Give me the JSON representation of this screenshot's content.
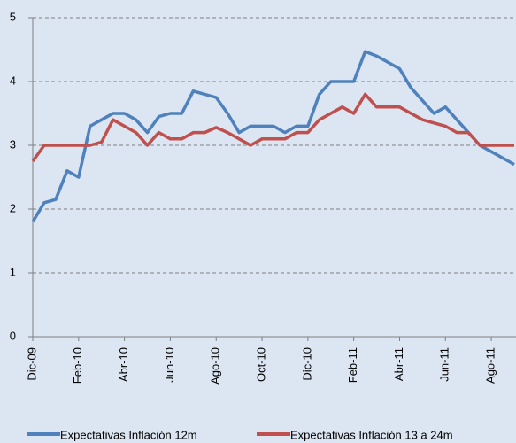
{
  "chart_data": {
    "type": "line",
    "categories": [
      "Dic-09",
      null,
      null,
      null,
      "Feb-10",
      null,
      null,
      null,
      "Abr-10",
      null,
      null,
      null,
      "Jun-10",
      null,
      null,
      null,
      "Ago-10",
      null,
      null,
      null,
      "Oct-10",
      null,
      null,
      null,
      "Dic-10",
      null,
      null,
      null,
      "Feb-11",
      null,
      null,
      null,
      "Abr-11",
      null,
      null,
      null,
      "Jun-11",
      null,
      null,
      null,
      "Ago-11",
      null,
      null
    ],
    "series": [
      {
        "name": "Expectativas Inflación 12m",
        "color": "#4f81bd",
        "values": [
          1.8,
          2.1,
          2.15,
          2.6,
          2.5,
          3.3,
          3.4,
          3.5,
          3.5,
          3.4,
          3.2,
          3.45,
          3.5,
          3.5,
          3.85,
          3.8,
          3.75,
          3.5,
          3.2,
          3.3,
          3.3,
          3.3,
          3.2,
          3.3,
          3.3,
          3.8,
          4.0,
          4.0,
          4.0,
          4.47,
          4.4,
          4.3,
          4.2,
          3.9,
          3.7,
          3.5,
          3.6,
          3.4,
          3.2,
          3.0,
          2.9,
          2.8,
          2.7
        ]
      },
      {
        "name": "Expectativas Inflación 13 a 24m",
        "color": "#c0504d",
        "values": [
          2.75,
          3.0,
          3.0,
          3.0,
          3.0,
          3.0,
          3.05,
          3.4,
          3.3,
          3.2,
          3.0,
          3.2,
          3.1,
          3.1,
          3.2,
          3.2,
          3.28,
          3.2,
          3.1,
          3.0,
          3.1,
          3.1,
          3.1,
          3.2,
          3.2,
          3.4,
          3.5,
          3.6,
          3.5,
          3.8,
          3.6,
          3.6,
          3.6,
          3.5,
          3.4,
          3.35,
          3.3,
          3.2,
          3.2,
          3.0,
          3.0,
          3.0,
          3.0
        ]
      }
    ],
    "ylim": [
      0,
      5
    ],
    "yticks": [
      0,
      1,
      2,
      3,
      4,
      5
    ],
    "grid": true,
    "legend": "bottom"
  }
}
